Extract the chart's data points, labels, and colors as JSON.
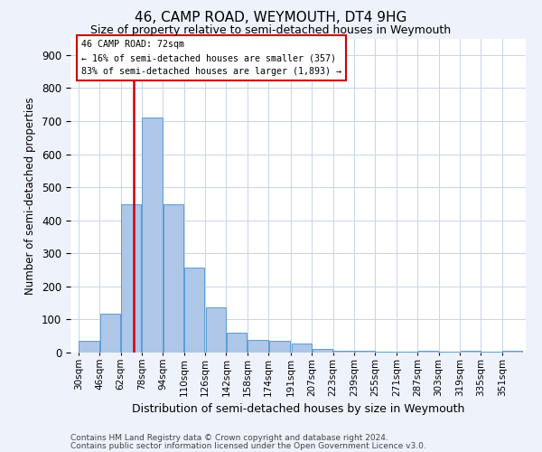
{
  "title1": "46, CAMP ROAD, WEYMOUTH, DT4 9HG",
  "title2": "Size of property relative to semi-detached houses in Weymouth",
  "xlabel": "Distribution of semi-detached houses by size in Weymouth",
  "ylabel": "Number of semi-detached properties",
  "bin_labels": [
    "30sqm",
    "46sqm",
    "62sqm",
    "78sqm",
    "94sqm",
    "110sqm",
    "126sqm",
    "142sqm",
    "158sqm",
    "174sqm",
    "191sqm",
    "207sqm",
    "223sqm",
    "239sqm",
    "255sqm",
    "271sqm",
    "287sqm",
    "303sqm",
    "319sqm",
    "335sqm",
    "351sqm"
  ],
  "bar_values": [
    35,
    117,
    447,
    710,
    449,
    256,
    136,
    60,
    37,
    35,
    27,
    10,
    5,
    5,
    3,
    3,
    5,
    3,
    5,
    3,
    5
  ],
  "bar_color": "#aec6e8",
  "bar_edge_color": "#5b9bd5",
  "property_line_x": 72,
  "property_line_label": "46 CAMP ROAD: 72sqm",
  "annotation_line1": "← 16% of semi-detached houses are smaller (357)",
  "annotation_line2": "83% of semi-detached houses are larger (1,893) →",
  "annotation_box_color": "#ffffff",
  "annotation_box_edge": "#cc0000",
  "vline_color": "#cc0000",
  "ylim": [
    0,
    950
  ],
  "yticks": [
    0,
    100,
    200,
    300,
    400,
    500,
    600,
    700,
    800,
    900
  ],
  "footnote1": "Contains HM Land Registry data © Crown copyright and database right 2024.",
  "footnote2": "Contains public sector information licensed under the Open Government Licence v3.0.",
  "bg_color": "#eef2fb",
  "plot_bg_color": "#ffffff",
  "grid_color": "#c8d4e8"
}
